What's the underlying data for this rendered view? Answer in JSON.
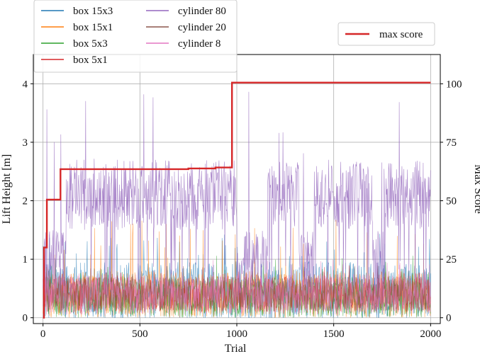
{
  "chart_data": {
    "type": "line",
    "xlabel": "Trial",
    "ylabel_left": "Lift Height [m]",
    "ylabel_right": "Max Score",
    "xlim": [
      -50,
      2050
    ],
    "ylim_left": [
      -0.1,
      4.5
    ],
    "ylim_right": [
      -2.5,
      112.5
    ],
    "grid": true,
    "x_ticks": [
      0,
      500,
      1000,
      1500,
      2000
    ],
    "y_ticks_left": [
      0,
      1,
      2,
      3,
      4
    ],
    "y_ticks_right": [
      0,
      25,
      50,
      75,
      100
    ],
    "legend_placement": "top-left, above axes",
    "legend2_placement": "top-right",
    "series": [
      {
        "name": "box 15x3",
        "color": "#1f77b4",
        "approx_mean": 0.45,
        "approx_spread": 0.5,
        "approx_max": 1.5
      },
      {
        "name": "box 15x1",
        "color": "#ff7f0e",
        "approx_mean": 0.4,
        "approx_spread": 0.4,
        "approx_max": 1.7
      },
      {
        "name": "box 5x3",
        "color": "#2ca02c",
        "approx_mean": 0.35,
        "approx_spread": 0.35,
        "approx_max": 1.1
      },
      {
        "name": "box 5x1",
        "color": "#d62728",
        "approx_mean": 0.4,
        "approx_spread": 0.3,
        "approx_max": 0.9
      },
      {
        "name": "cylinder 80",
        "color": "#9467bd",
        "approx_mean": 2.1,
        "approx_spread": 0.6,
        "approx_max": 3.9
      },
      {
        "name": "cylinder 20",
        "color": "#8c564b",
        "approx_mean": 0.4,
        "approx_spread": 0.3,
        "approx_max": 0.9
      },
      {
        "name": "cylinder 8",
        "color": "#e377c2",
        "approx_mean": 0.4,
        "approx_spread": 0.35,
        "approx_max": 1.0
      }
    ],
    "max_score": {
      "name": "max score",
      "color": "#d62728",
      "axis": "right",
      "x": [
        0,
        5,
        5,
        20,
        20,
        90,
        90,
        750,
        750,
        890,
        890,
        975,
        975,
        2000
      ],
      "y": [
        0,
        0,
        30,
        30,
        50.5,
        50.5,
        63.5,
        63.5,
        63.8,
        63.8,
        64.2,
        64.2,
        100.5,
        100.5
      ]
    }
  }
}
